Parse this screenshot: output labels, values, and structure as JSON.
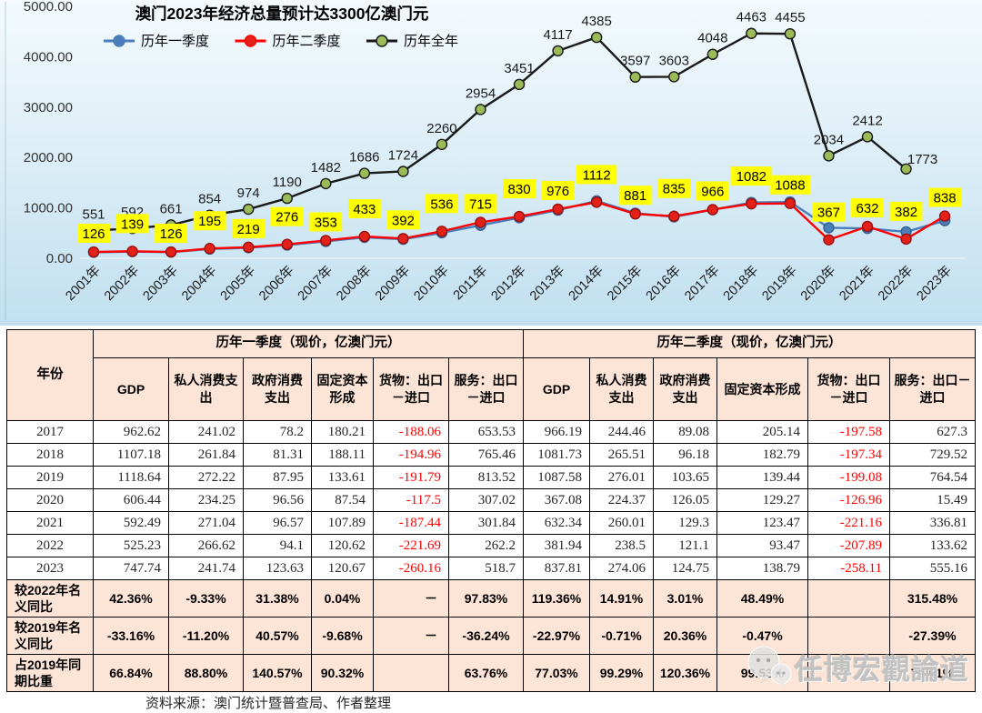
{
  "chart_data": {
    "type": "line",
    "title": "澳门2023年经济总量预计达3300亿澳门元",
    "categories": [
      "2001年",
      "2002年",
      "2003年",
      "2004年",
      "2005年",
      "2006年",
      "2007年",
      "2008年",
      "2009年",
      "2010年",
      "2011年",
      "2012年",
      "2013年",
      "2014年",
      "2015年",
      "2016年",
      "2017年",
      "2018年",
      "2019年",
      "2020年",
      "2021年",
      "2022年",
      "2023年"
    ],
    "ylim": [
      0,
      5000
    ],
    "y_ticks": [
      "0.00",
      "1000.00",
      "2000.00",
      "3000.00",
      "4000.00",
      "5000.00"
    ],
    "grid": false,
    "legend_position": "top",
    "series": [
      {
        "name": "历年一季度",
        "line_color": "#4a7ebb",
        "marker_color": "#4a7ebb",
        "labels_shown": false,
        "note": "2001-2016 values estimated from plot; 2017-2023 from table",
        "values": [
          118,
          132,
          122,
          183,
          210,
          262,
          335,
          415,
          378,
          505,
          655,
          805,
          955,
          1140,
          895,
          822,
          962.62,
          1107.18,
          1118.64,
          606.44,
          592.49,
          525.23,
          747.74
        ]
      },
      {
        "name": "历年二季度",
        "line_color": "#ff0000",
        "marker_color": "#e32119",
        "labels_shown": true,
        "label_bg": "#ffff00",
        "values": [
          126,
          139,
          126,
          195,
          219,
          276,
          353,
          433,
          392,
          536,
          715,
          830,
          976,
          1112,
          881,
          835,
          966,
          1082,
          1088,
          367,
          632,
          382,
          838
        ]
      },
      {
        "name": "历年全年",
        "line_color": "#1a1a1a",
        "marker_color": "#9bbb59",
        "labels_shown": true,
        "values": [
          551,
          592,
          661,
          854,
          974,
          1190,
          1482,
          1686,
          1724,
          2260,
          2954,
          3451,
          4117,
          4385,
          3597,
          3603,
          4048,
          4463,
          4455,
          2034,
          2412,
          1773
        ]
      }
    ]
  },
  "table": {
    "year_header": "年份",
    "group_headers": [
      "历年一季度（现价，亿澳门元）",
      "历年二季度（现价，亿澳门元）"
    ],
    "col_headers": [
      "GDP",
      "私人消费支出",
      "政府消费支出",
      "固定资本形成",
      "货物：出口－进口",
      "服务：出口－进口"
    ],
    "rows": [
      {
        "label": "2017",
        "values": [
          "962.62",
          "241.02",
          "78.2",
          "180.21",
          "-188.06",
          "653.53",
          "966.19",
          "244.46",
          "89.08",
          "205.14",
          "-197.58",
          "627.3"
        ]
      },
      {
        "label": "2018",
        "values": [
          "1107.18",
          "261.84",
          "81.31",
          "188.11",
          "-194.96",
          "765.46",
          "1081.73",
          "265.51",
          "96.18",
          "182.79",
          "-197.34",
          "729.52"
        ]
      },
      {
        "label": "2019",
        "values": [
          "1118.64",
          "272.22",
          "87.95",
          "133.61",
          "-191.79",
          "813.52",
          "1087.58",
          "276.01",
          "103.65",
          "139.44",
          "-199.08",
          "764.54"
        ]
      },
      {
        "label": "2020",
        "values": [
          "606.44",
          "234.25",
          "96.56",
          "87.54",
          "-117.5",
          "307.02",
          "367.08",
          "224.37",
          "126.05",
          "129.27",
          "-126.96",
          "15.49"
        ]
      },
      {
        "label": "2021",
        "values": [
          "592.49",
          "271.04",
          "96.57",
          "107.89",
          "-187.44",
          "301.84",
          "632.34",
          "260.01",
          "129.3",
          "123.47",
          "-221.16",
          "336.81"
        ]
      },
      {
        "label": "2022",
        "values": [
          "525.23",
          "266.62",
          "94.1",
          "120.62",
          "-221.69",
          "262.2",
          "381.94",
          "238.5",
          "121.1",
          "93.47",
          "-207.89",
          "133.62"
        ]
      },
      {
        "label": "2023",
        "values": [
          "747.74",
          "241.74",
          "123.63",
          "120.67",
          "-260.16",
          "518.7",
          "837.81",
          "274.06",
          "124.75",
          "138.79",
          "-258.11",
          "555.16"
        ]
      }
    ],
    "summary_rows": [
      {
        "label": "较2022年名义同比",
        "values": [
          "42.36%",
          "-9.33%",
          "31.38%",
          "0.04%",
          "－",
          "97.83%",
          "119.36%",
          "14.91%",
          "3.01%",
          "48.49%",
          "",
          "315.48%"
        ]
      },
      {
        "label": "较2019年名义同比",
        "values": [
          "-33.16%",
          "-11.20%",
          "40.57%",
          "-9.68%",
          "－",
          "-36.24%",
          "-22.97%",
          "-0.71%",
          "20.36%",
          "-0.47%",
          "",
          "-27.39%"
        ]
      },
      {
        "label": "占2019年同期比重",
        "values": [
          "66.84%",
          "88.80%",
          "140.57%",
          "90.32%",
          "",
          "63.76%",
          "77.03%",
          "99.29%",
          "120.36%",
          "99.53%",
          "",
          "72.61%"
        ]
      }
    ]
  },
  "footer": {
    "source": "资料来源：澳门统计暨普查局、作者整理"
  },
  "watermark": {
    "text": "任博宏觀論道"
  }
}
